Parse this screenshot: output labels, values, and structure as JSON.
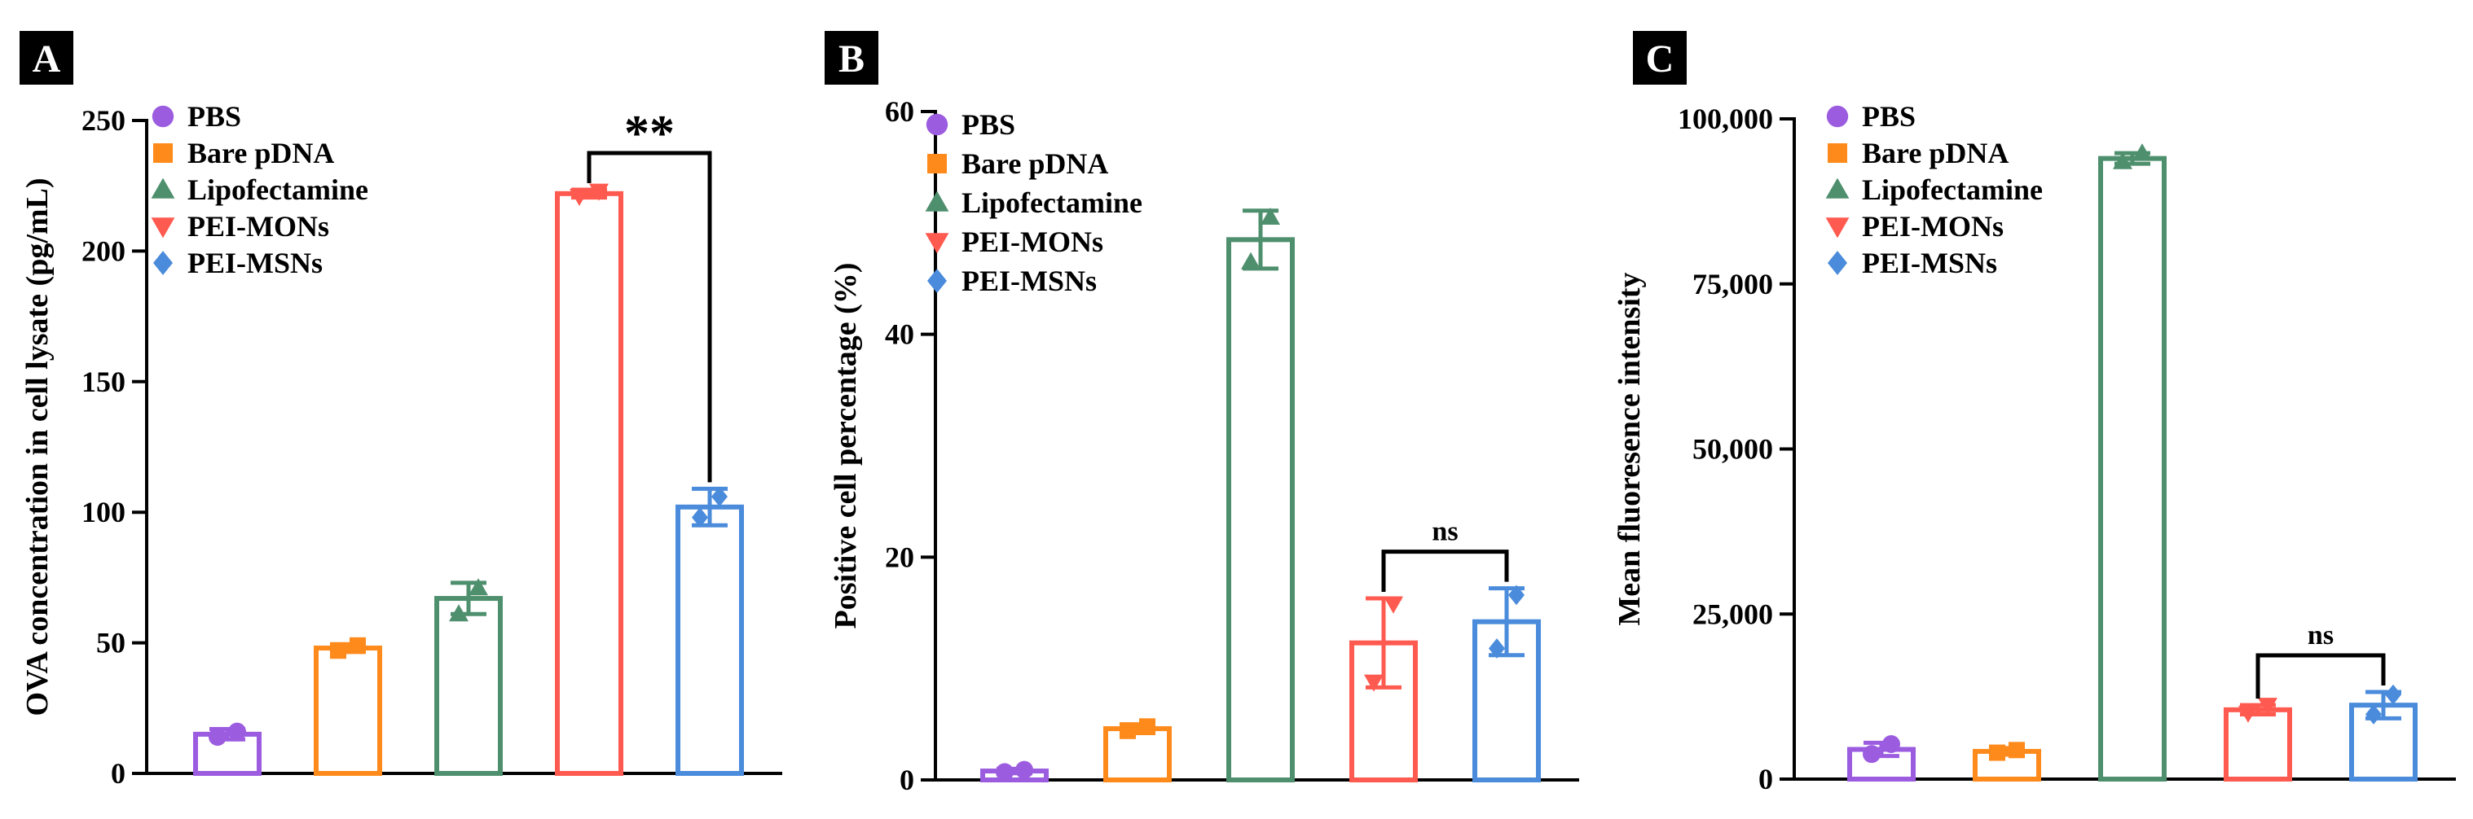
{
  "colors": {
    "PBS": "#9B5CE0",
    "Bare pDNA": "#FF8A1C",
    "Lipofectamine": "#4E8F6E",
    "PEI-MONs": "#FF5A50",
    "PEI-MSNs": "#4A8BDB",
    "axis": "#000000",
    "panel_badge": "#000000"
  },
  "chart_data": [
    {
      "panel": "A",
      "type": "bar",
      "ylabel": "OVA concentration in  cell lysate (pg/mL)",
      "xlabel": "",
      "ylim": [
        0,
        250
      ],
      "yticks": [
        0,
        50,
        100,
        150,
        200,
        250
      ],
      "ytick_labels": [
        "0",
        "50",
        "100",
        "150",
        "200",
        "250"
      ],
      "categories": [
        "PBS",
        "Bare pDNA",
        "Lipofectamine",
        "PEI-MONs",
        "PEI-MSNs"
      ],
      "values": [
        15,
        48,
        67,
        222,
        102
      ],
      "errors": [
        2,
        1.5,
        6,
        1.5,
        7
      ],
      "points": [
        [
          14,
          16
        ],
        [
          47,
          49
        ],
        [
          61,
          71
        ],
        [
          221,
          223
        ],
        [
          98,
          106
        ]
      ],
      "markers": [
        "circle",
        "square",
        "triangle-up",
        "triangle-down",
        "diamond"
      ],
      "legend": [
        "PBS",
        "Bare pDNA",
        "Lipofectamine",
        "PEI-MONs",
        "PEI-MSNs"
      ],
      "legend_position": "top-left",
      "significance": [
        {
          "from": "PEI-MONs",
          "to": "PEI-MSNs",
          "label": "**"
        }
      ]
    },
    {
      "panel": "B",
      "type": "bar",
      "ylabel": "Positive cell percentage (%)",
      "xlabel": "",
      "ylim": [
        0,
        60
      ],
      "yticks": [
        0,
        20,
        40,
        60
      ],
      "ytick_labels": [
        "0",
        "20",
        "40",
        "60"
      ],
      "categories": [
        "PBS",
        "Bare pDNA",
        "Lipofectamine",
        "PEI-MONs",
        "PEI-MSNs"
      ],
      "values": [
        0.8,
        4.6,
        48.5,
        12.3,
        14.2
      ],
      "errors": [
        0.2,
        0.4,
        2.6,
        4,
        3
      ],
      "points": [
        [
          0.7,
          0.9
        ],
        [
          4.4,
          4.8
        ],
        [
          46.5,
          50.5
        ],
        [
          8.8,
          15.8
        ],
        [
          11.8,
          16.6
        ]
      ],
      "markers": [
        "circle",
        "square",
        "triangle-up",
        "triangle-down",
        "diamond"
      ],
      "legend": [
        "PBS",
        "Bare pDNA",
        "Lipofectamine",
        "PEI-MONs",
        "PEI-MSNs"
      ],
      "legend_position": "top-left",
      "significance": [
        {
          "from": "PEI-MONs",
          "to": "PEI-MSNs",
          "label": "ns"
        }
      ]
    },
    {
      "panel": "C",
      "type": "bar",
      "ylabel": "Mean fluoresence intensity",
      "xlabel": "",
      "ylim": [
        0,
        100000
      ],
      "yticks": [
        0,
        25000,
        50000,
        75000,
        100000
      ],
      "ytick_labels": [
        "0",
        "25,000",
        "50,000",
        "75,000",
        "100,000"
      ],
      "categories": [
        "PBS",
        "Bare pDNA",
        "Lipofectamine",
        "PEI-MONs",
        "PEI-MSNs"
      ],
      "values": [
        4500,
        4200,
        94000,
        10500,
        11200
      ],
      "errors": [
        1000,
        500,
        800,
        700,
        2000
      ],
      "points": [
        [
          3800,
          5300
        ],
        [
          4000,
          4400
        ],
        [
          93500,
          94800
        ],
        [
          10000,
          11200
        ],
        [
          9800,
          12800
        ]
      ],
      "markers": [
        "circle",
        "square",
        "triangle-up",
        "triangle-down",
        "diamond"
      ],
      "legend": [
        "PBS",
        "Bare pDNA",
        "Lipofectamine",
        "PEI-MONs",
        "PEI-MSNs"
      ],
      "legend_position": "top-left",
      "significance": [
        {
          "from": "PEI-MONs",
          "to": "PEI-MSNs",
          "label": "ns"
        }
      ]
    }
  ]
}
